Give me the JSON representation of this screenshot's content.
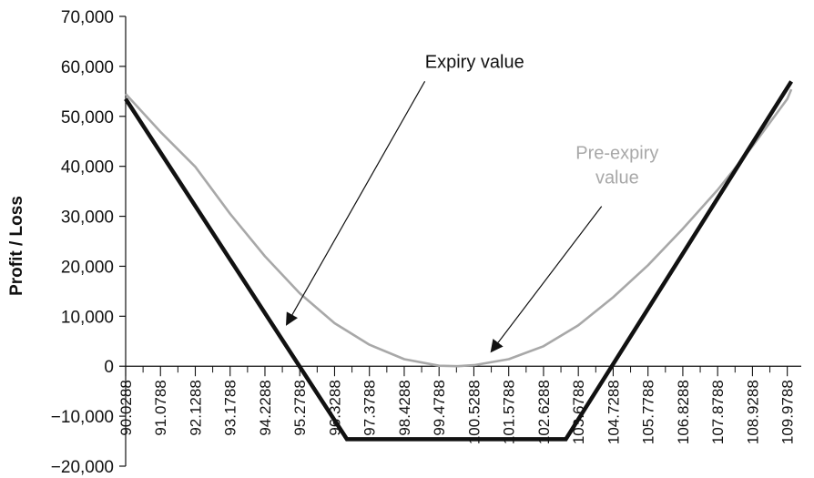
{
  "chart_data": {
    "type": "line",
    "title": "",
    "xlabel": "",
    "ylabel": "Profit / Loss",
    "ylim": [
      -20000,
      70000
    ],
    "yticks": [
      70000,
      60000,
      50000,
      40000,
      30000,
      20000,
      10000,
      0,
      -10000,
      -20000
    ],
    "ytick_labels": [
      "70,000",
      "60,000",
      "50,000",
      "40,000",
      "30,000",
      "20,000",
      "10,000",
      "0",
      "−10,000",
      "−20,000"
    ],
    "xlim": [
      90.0288,
      110.4
    ],
    "xtick_labels": [
      "90.0288",
      "91.0788",
      "92.1288",
      "93.1788",
      "94.2288",
      "95.2788",
      "96.3288",
      "97.3788",
      "98.4288",
      "99.4788",
      "100.5288",
      "101.5788",
      "102.6288",
      "103.6788",
      "104.7288",
      "105.7788",
      "106.8288",
      "107.8788",
      "108.9288",
      "109.9788"
    ],
    "grid": false,
    "series": [
      {
        "name": "Expiry value",
        "color": "#111111",
        "points": [
          [
            90.0288,
            53500
          ],
          [
            96.7,
            -14600
          ],
          [
            103.3,
            -14600
          ],
          [
            110.1,
            57000
          ]
        ]
      },
      {
        "name": "Pre-expiry value",
        "color": "#a8a8a8",
        "points": [
          [
            90.0288,
            54500
          ],
          [
            91.0788,
            46900
          ],
          [
            92.1288,
            39900
          ],
          [
            93.1788,
            30500
          ],
          [
            94.2288,
            22000
          ],
          [
            95.2788,
            14600
          ],
          [
            96.3288,
            8600
          ],
          [
            97.3788,
            4300
          ],
          [
            98.4288,
            1400
          ],
          [
            99.4788,
            100
          ],
          [
            100.0288,
            0
          ],
          [
            100.5288,
            200
          ],
          [
            101.5788,
            1400
          ],
          [
            102.6288,
            4000
          ],
          [
            103.6788,
            8200
          ],
          [
            104.7288,
            13800
          ],
          [
            105.7788,
            20200
          ],
          [
            106.8288,
            27500
          ],
          [
            107.8788,
            35300
          ],
          [
            108.9288,
            44000
          ],
          [
            109.9788,
            53500
          ],
          [
            110.1,
            55400
          ]
        ]
      }
    ],
    "annotations": [
      {
        "lines": [
          "Expiry value"
        ],
        "color": "#111111",
        "text_at": [
          100.55,
          59700
        ],
        "arrow_from": [
          99.05,
          57000
        ],
        "arrow_to": [
          94.88,
          8300
        ]
      },
      {
        "lines": [
          "Pre-expiry",
          "value"
        ],
        "color": "#a8a8a8",
        "text_at": [
          104.85,
          41500
        ],
        "arrow_from": [
          104.38,
          32000
        ],
        "arrow_to": [
          101.05,
          2900
        ]
      }
    ]
  }
}
